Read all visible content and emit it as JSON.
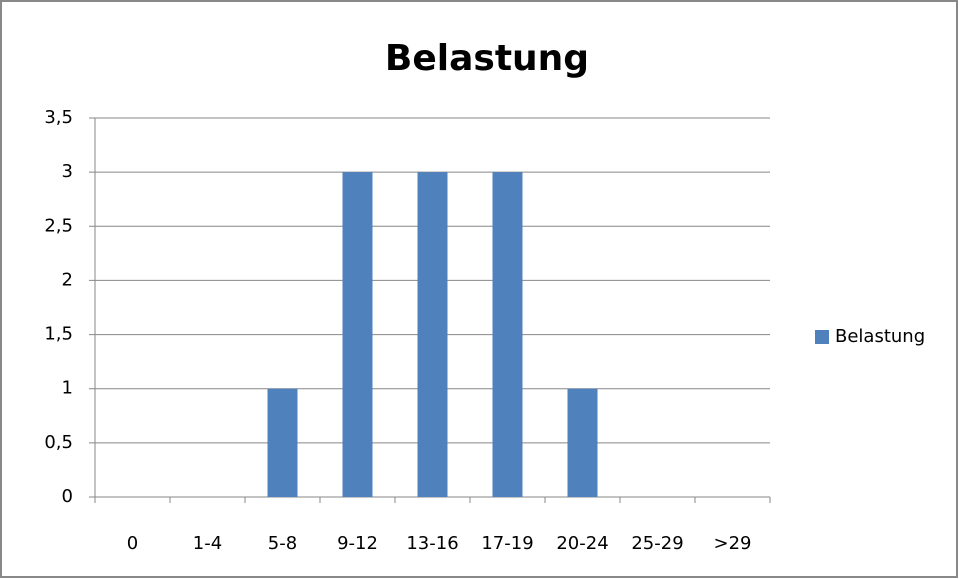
{
  "chart_data": {
    "type": "bar",
    "title": "Belastung",
    "categories": [
      "0",
      "1-4",
      "5-8",
      "9-12",
      "13-16",
      "17-19",
      "20-24",
      "25-29",
      ">29"
    ],
    "series": [
      {
        "name": "Belastung",
        "color": "#4f81bd",
        "values": [
          0,
          0,
          1,
          3,
          3,
          3,
          1,
          0,
          0
        ]
      }
    ],
    "ylim": [
      0,
      3.5
    ],
    "yticks": [
      0,
      {
        "value": 0.5,
        "label": "0,5"
      },
      1,
      {
        "value": 1.5,
        "label": "1,5"
      },
      2,
      {
        "value": 2.5,
        "label": "2,5"
      },
      3,
      {
        "value": 3.5,
        "label": "3,5"
      }
    ],
    "grid": true,
    "legend": "right"
  }
}
